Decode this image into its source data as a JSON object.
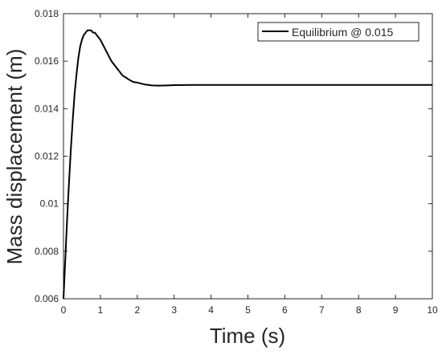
{
  "chart_data": {
    "type": "line",
    "title": "",
    "xlabel": "Time (s)",
    "ylabel": "Mass displacement (m)",
    "xlim": [
      0,
      10
    ],
    "ylim": [
      0.006,
      0.018
    ],
    "x_ticks": [
      0,
      1,
      2,
      3,
      4,
      5,
      6,
      7,
      8,
      9,
      10
    ],
    "x_tick_labels": [
      "0",
      "1",
      "2",
      "3",
      "4",
      "5",
      "6",
      "7",
      "8",
      "9",
      "10"
    ],
    "y_ticks": [
      0.006,
      0.008,
      0.01,
      0.012,
      0.014,
      0.016,
      0.018
    ],
    "y_tick_labels": [
      "0.006",
      "0.008",
      "0.01",
      "0.012",
      "0.014",
      "0.016",
      "0.018"
    ],
    "grid": false,
    "legend_position": "top-right",
    "series": [
      {
        "name": "Equilibrium @ 0.015",
        "color": "#000000",
        "x": [
          0,
          0.05,
          0.1,
          0.15,
          0.2,
          0.25,
          0.3,
          0.35,
          0.4,
          0.45,
          0.5,
          0.55,
          0.6,
          0.65,
          0.7,
          0.75,
          0.8,
          0.85,
          0.9,
          0.95,
          1.0,
          1.1,
          1.2,
          1.3,
          1.4,
          1.5,
          1.6,
          1.7,
          1.8,
          1.9,
          2.0,
          2.2,
          2.4,
          2.6,
          2.8,
          3.0,
          3.5,
          4.0,
          5.0,
          6.0,
          7.0,
          8.0,
          9.0,
          10.0
        ],
        "y": [
          0.006,
          0.0077,
          0.0094,
          0.0109,
          0.0123,
          0.0135,
          0.0146,
          0.0154,
          0.0161,
          0.0166,
          0.0169,
          0.0171,
          0.0172,
          0.0173,
          0.0173,
          0.0173,
          0.0172,
          0.0172,
          0.0171,
          0.017,
          0.0169,
          0.0166,
          0.0163,
          0.016,
          0.0158,
          0.0156,
          0.0154,
          0.0153,
          0.0152,
          0.01512,
          0.0151,
          0.01502,
          0.01498,
          0.01497,
          0.01498,
          0.01499,
          0.015,
          0.015,
          0.015,
          0.015,
          0.015,
          0.015,
          0.015,
          0.015
        ]
      }
    ]
  }
}
